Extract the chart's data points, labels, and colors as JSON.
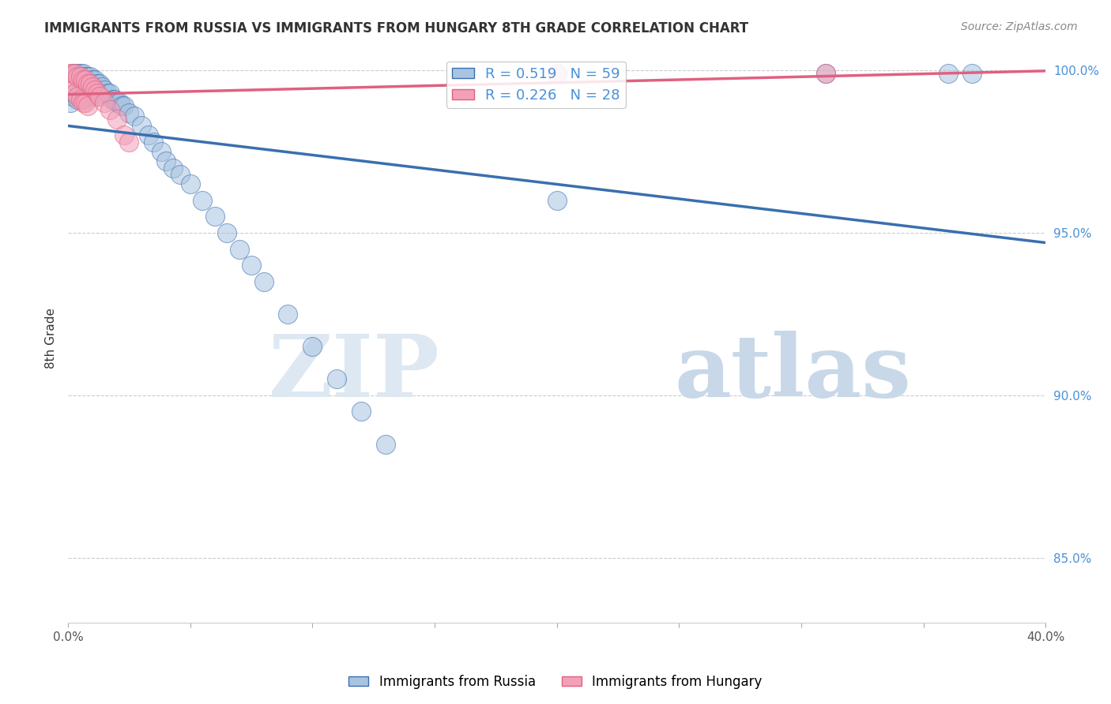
{
  "title": "IMMIGRANTS FROM RUSSIA VS IMMIGRANTS FROM HUNGARY 8TH GRADE CORRELATION CHART",
  "source": "Source: ZipAtlas.com",
  "ylabel": "8th Grade",
  "xlim": [
    0.0,
    0.4
  ],
  "ylim": [
    0.83,
    1.005
  ],
  "xticks": [
    0.0,
    0.05,
    0.1,
    0.15,
    0.2,
    0.25,
    0.3,
    0.35,
    0.4
  ],
  "xticklabels": [
    "0.0%",
    "",
    "",
    "",
    "",
    "",
    "",
    "",
    "40.0%"
  ],
  "yticks": [
    0.85,
    0.9,
    0.95,
    1.0
  ],
  "yticklabels": [
    "85.0%",
    "90.0%",
    "95.0%",
    "100.0%"
  ],
  "russia_R": 0.519,
  "russia_N": 59,
  "hungary_R": 0.226,
  "hungary_N": 28,
  "russia_color": "#a8c4e0",
  "hungary_color": "#f4a0b8",
  "russia_line_color": "#3a6faf",
  "hungary_line_color": "#e06080",
  "legend_russia": "Immigrants from Russia",
  "legend_hungary": "Immigrants from Hungary",
  "watermark_zip": "ZIP",
  "watermark_atlas": "atlas",
  "russia_x": [
    0.001,
    0.002,
    0.002,
    0.003,
    0.003,
    0.004,
    0.004,
    0.005,
    0.005,
    0.006,
    0.006,
    0.006,
    0.007,
    0.007,
    0.008,
    0.008,
    0.009,
    0.009,
    0.01,
    0.01,
    0.011,
    0.011,
    0.012,
    0.013,
    0.014,
    0.015,
    0.016,
    0.017,
    0.018,
    0.019,
    0.02,
    0.021,
    0.022,
    0.023,
    0.025,
    0.027,
    0.03,
    0.033,
    0.035,
    0.038,
    0.04,
    0.043,
    0.046,
    0.05,
    0.055,
    0.06,
    0.065,
    0.07,
    0.075,
    0.08,
    0.09,
    0.1,
    0.11,
    0.12,
    0.13,
    0.2,
    0.31,
    0.36,
    0.37
  ],
  "russia_y": [
    0.99,
    0.999,
    0.992,
    0.999,
    0.993,
    0.999,
    0.991,
    0.999,
    0.993,
    0.999,
    0.996,
    0.991,
    0.998,
    0.993,
    0.998,
    0.994,
    0.998,
    0.992,
    0.997,
    0.993,
    0.997,
    0.992,
    0.996,
    0.996,
    0.995,
    0.994,
    0.993,
    0.993,
    0.991,
    0.991,
    0.99,
    0.99,
    0.989,
    0.989,
    0.987,
    0.986,
    0.983,
    0.98,
    0.978,
    0.975,
    0.972,
    0.97,
    0.968,
    0.965,
    0.96,
    0.955,
    0.95,
    0.945,
    0.94,
    0.935,
    0.925,
    0.915,
    0.905,
    0.895,
    0.885,
    0.96,
    0.999,
    0.999,
    0.999
  ],
  "hungary_x": [
    0.001,
    0.001,
    0.002,
    0.002,
    0.003,
    0.003,
    0.004,
    0.004,
    0.005,
    0.005,
    0.006,
    0.006,
    0.007,
    0.007,
    0.008,
    0.008,
    0.009,
    0.01,
    0.011,
    0.012,
    0.013,
    0.015,
    0.017,
    0.02,
    0.023,
    0.025,
    0.2,
    0.31
  ],
  "hungary_y": [
    0.999,
    0.995,
    0.999,
    0.994,
    0.999,
    0.993,
    0.998,
    0.992,
    0.998,
    0.991,
    0.997,
    0.99,
    0.997,
    0.99,
    0.996,
    0.989,
    0.996,
    0.995,
    0.994,
    0.993,
    0.992,
    0.99,
    0.988,
    0.985,
    0.98,
    0.978,
    0.999,
    0.999
  ]
}
